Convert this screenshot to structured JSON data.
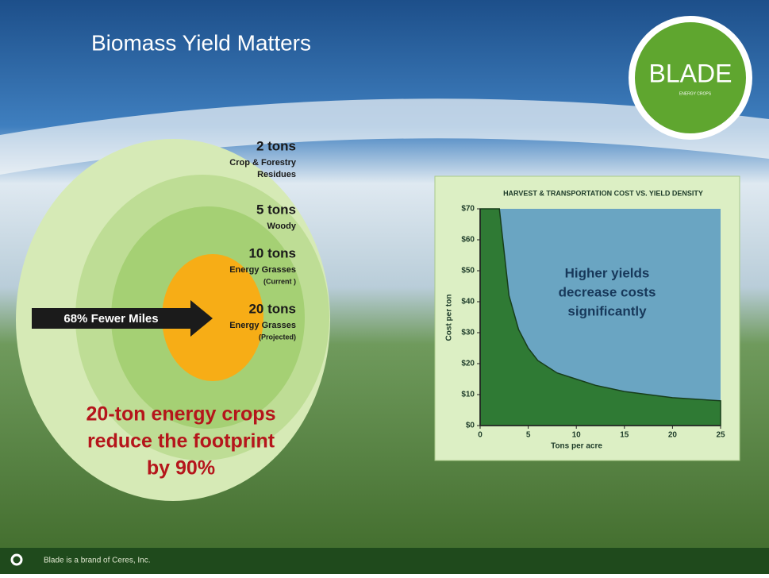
{
  "slide": {
    "title": "Biomass Yield Matters",
    "logo": {
      "name": "BLADE",
      "tagline": "ENERGY CROPS"
    },
    "footer": "Blade is a brand of Ceres, Inc."
  },
  "rings": [
    {
      "amount": "2 tons",
      "label": [
        "Crop & Forestry",
        "Residues"
      ]
    },
    {
      "amount": "5 tons",
      "label": [
        "Woody"
      ]
    },
    {
      "amount": "10 tons",
      "label": [
        "Energy Grasses",
        "(Current )"
      ]
    },
    {
      "amount": "20 tons",
      "label": [
        "Energy Grasses",
        "(Projected)"
      ]
    }
  ],
  "arrow": "68% Fewer Miles",
  "callout": [
    "20-ton energy crops",
    "reduce the footprint",
    "by 90%"
  ],
  "chart_data": {
    "type": "area",
    "title": "HARVEST & TRANSPORTATION COST VS. YIELD DENSITY",
    "x_label": "Tons per acre",
    "y_label": "Cost per ton",
    "annotation": [
      "Higher yields",
      "decrease costs",
      "significantly"
    ],
    "x": [
      0,
      1,
      2,
      3,
      4,
      5,
      6,
      8,
      10,
      12,
      15,
      20,
      25
    ],
    "values": [
      70,
      70,
      70,
      42,
      31,
      25,
      21,
      17,
      15,
      13,
      11,
      9,
      8
    ],
    "color": "#2f7a34",
    "background": "#6aa5c2",
    "xlim": [
      0,
      25
    ],
    "ylim": [
      0,
      70
    ],
    "xticks": [
      0,
      5,
      10,
      15,
      20,
      25
    ],
    "yticks": [
      {
        "value": 0,
        "label": "$0"
      },
      {
        "value": 10,
        "label": "$10"
      },
      {
        "value": 20,
        "label": "$20"
      },
      {
        "value": 30,
        "label": "$30"
      },
      {
        "value": 40,
        "label": "$40"
      },
      {
        "value": 50,
        "label": "$50"
      },
      {
        "value": 60,
        "label": "$60"
      },
      {
        "value": 70,
        "label": "$70"
      }
    ]
  }
}
